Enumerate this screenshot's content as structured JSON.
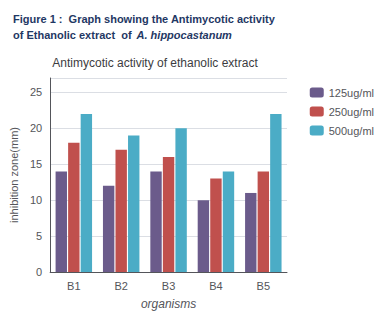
{
  "chart_data": {
    "type": "bar",
    "title": "Antimycotic activity of ethanolic extract",
    "annotations": [
      "Figure 1 :  Graph showing the Antimycotic activity",
      "of Ethanolic extract  of",
      "A. hippocastanum"
    ],
    "xlabel": "organisms",
    "ylabel": "inhibition zone(mm)",
    "categories": [
      "B1",
      "B2",
      "B3",
      "B4",
      "B5"
    ],
    "series": [
      {
        "name": "125ug/ml",
        "values": [
          14,
          12,
          14,
          10,
          11
        ],
        "color": "#6B5B8B"
      },
      {
        "name": "250ug/ml",
        "values": [
          18,
          17,
          16,
          13,
          14
        ],
        "color": "#C0504D"
      },
      {
        "name": "500ug/ml",
        "values": [
          22,
          19,
          20,
          14,
          22
        ],
        "color": "#4BACC6"
      }
    ],
    "ylim": [
      0,
      27
    ],
    "yticks": [
      0,
      5,
      10,
      15,
      20,
      25
    ],
    "grid": true,
    "legend": "right"
  }
}
